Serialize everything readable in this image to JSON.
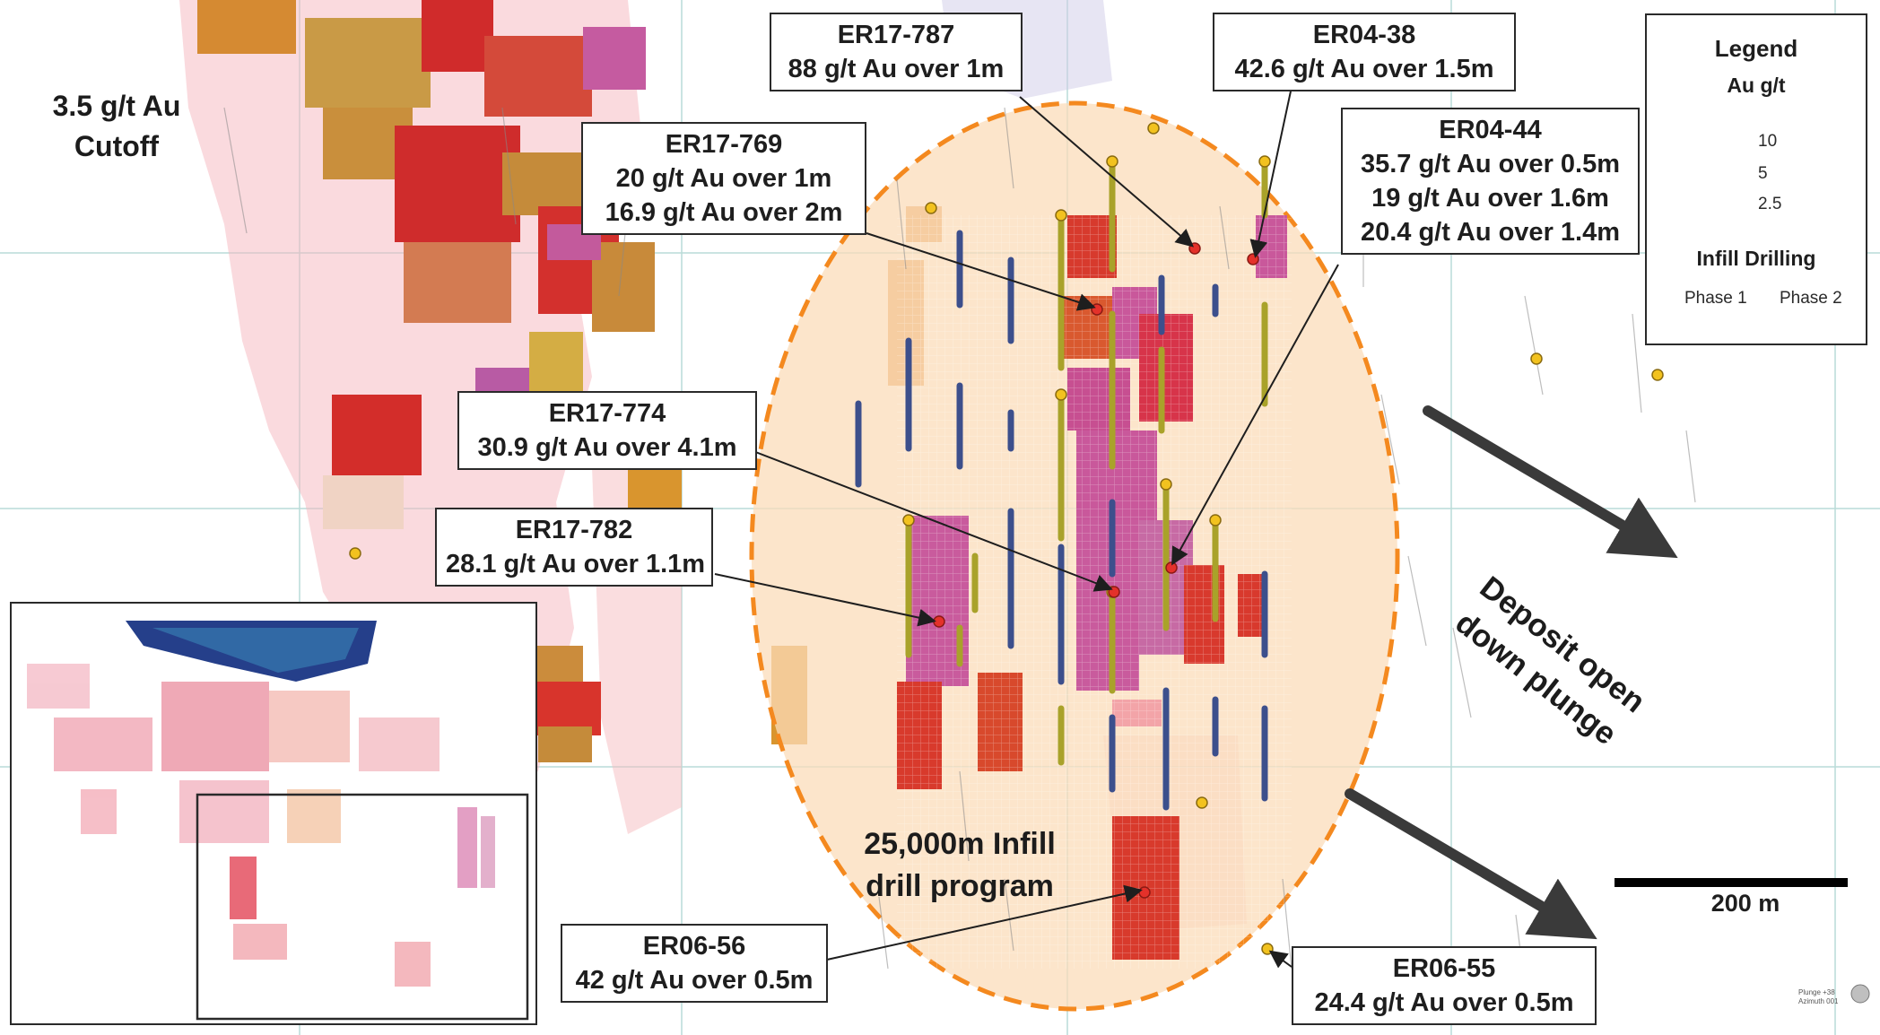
{
  "labels": {
    "cutoff_line1": "3.5 g/t Au",
    "cutoff_line2": "Cutoff",
    "infill_line1": "25,000m Infill",
    "infill_line2": "drill program",
    "deposit_line1": "Deposit open",
    "deposit_line2": "down plunge"
  },
  "callouts": [
    {
      "id": "ER17-787",
      "lines": [
        "ER17-787",
        "88 g/t Au over 1m"
      ]
    },
    {
      "id": "ER04-38",
      "lines": [
        "ER04-38",
        "42.6 g/t Au over 1.5m"
      ]
    },
    {
      "id": "ER04-44",
      "lines": [
        "ER04-44",
        "35.7 g/t Au over 0.5m",
        "19 g/t Au over 1.6m",
        "20.4 g/t Au over 1.4m"
      ]
    },
    {
      "id": "ER17-769",
      "lines": [
        "ER17-769",
        "20 g/t Au over 1m",
        "16.9 g/t Au over 2m"
      ]
    },
    {
      "id": "ER17-774",
      "lines": [
        "ER17-774",
        "30.9 g/t Au over 4.1m"
      ]
    },
    {
      "id": "ER17-782",
      "lines": [
        "ER17-782",
        "28.1 g/t Au over 1.1m"
      ]
    },
    {
      "id": "ER06-56",
      "lines": [
        "ER06-56",
        "42 g/t Au over 0.5m"
      ]
    },
    {
      "id": "ER06-55",
      "lines": [
        "ER06-55",
        "24.4 g/t Au over 0.5m"
      ]
    }
  ],
  "legend": {
    "title": "Legend",
    "unit": "Au g/t",
    "grade_bins": [
      {
        "label": "10",
        "color": "#c2569a"
      },
      {
        "label": "5",
        "color": "#e4312a"
      },
      {
        "label": "2.5",
        "color": "#f2a21f"
      }
    ],
    "infill_title": "Infill Drilling",
    "phase1": "Phase 1",
    "phase2": "Phase 2",
    "phase1_color": "#c9c43a",
    "phase2_color": "#3c4f8c"
  },
  "scale_bar": {
    "label": "200 m"
  },
  "plunge_info": {
    "line1": "Plunge +38",
    "line2": "Azimuth 001"
  },
  "colors": {
    "highlight_ellipse": "#f4891f",
    "arrow": "#3a3a3a",
    "grid": "#b9dcd8"
  }
}
